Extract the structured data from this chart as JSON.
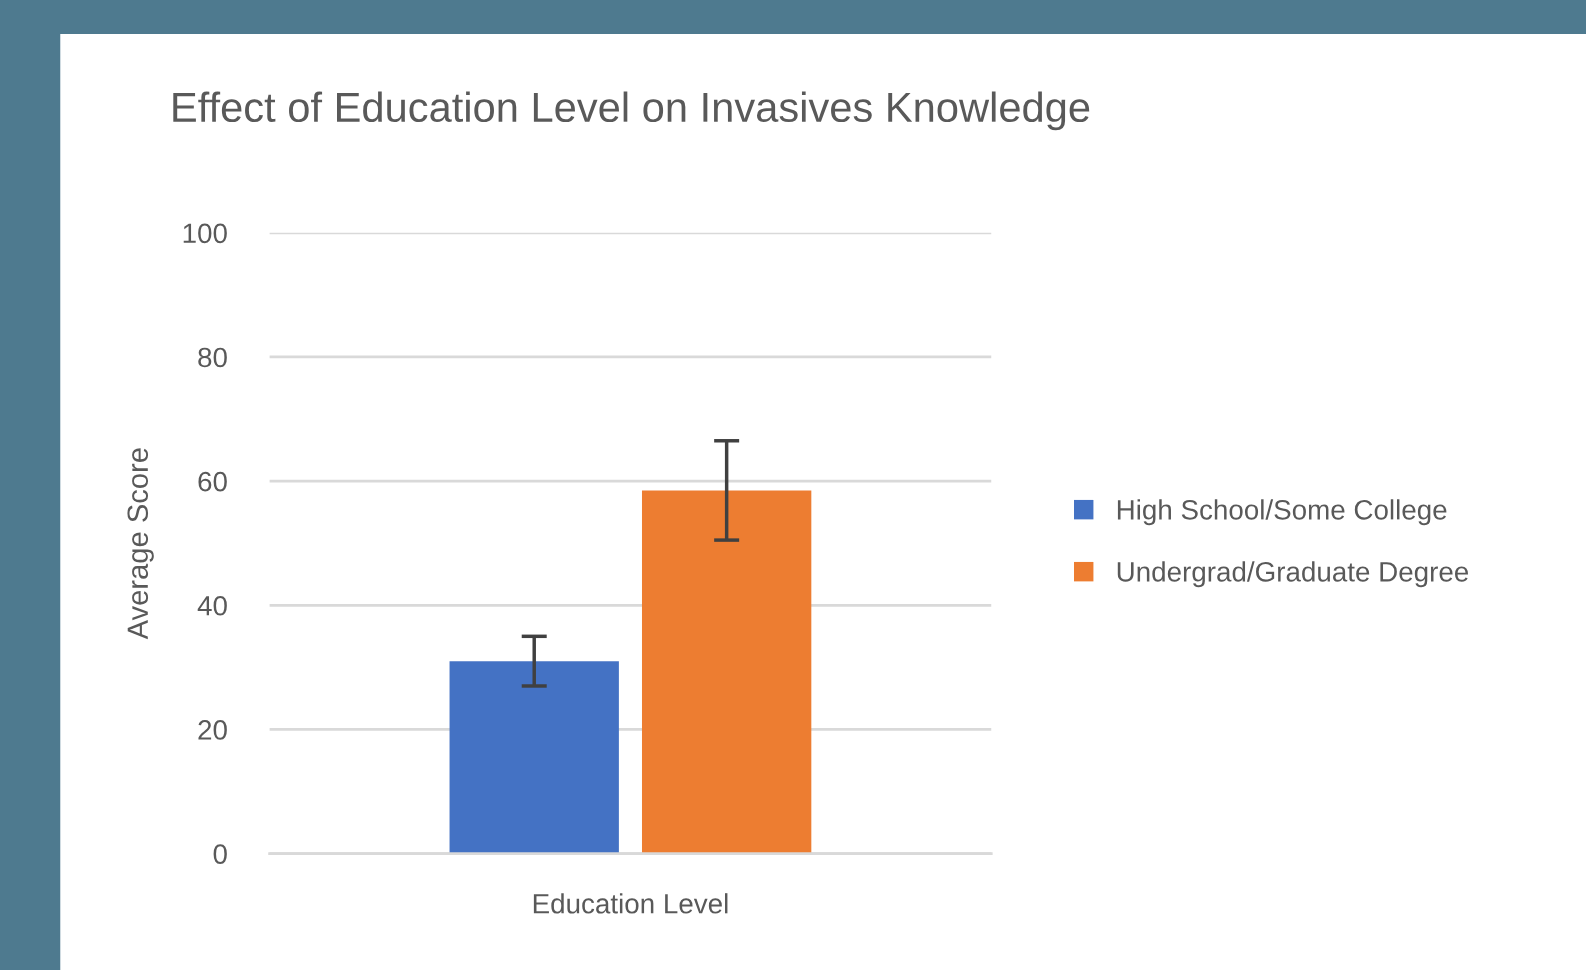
{
  "chart_data": {
    "type": "bar",
    "title": "Effect of Education Level on Invasives Knowledge",
    "xlabel": "Education Level",
    "ylabel": "Average Score",
    "categories": [
      null
    ],
    "series": [
      {
        "name": "High School/Some College",
        "color": "#4472c4",
        "values": [
          31
        ],
        "errors": [
          4
        ]
      },
      {
        "name": "Undergrad/Graduate Degree",
        "color": "#ed7d31",
        "values": [
          58.5
        ],
        "errors": [
          8
        ]
      }
    ],
    "ylim": [
      0,
      100
    ],
    "yticks": [
      0,
      20,
      40,
      60,
      80,
      100
    ],
    "grid": "y",
    "legend": "right"
  }
}
